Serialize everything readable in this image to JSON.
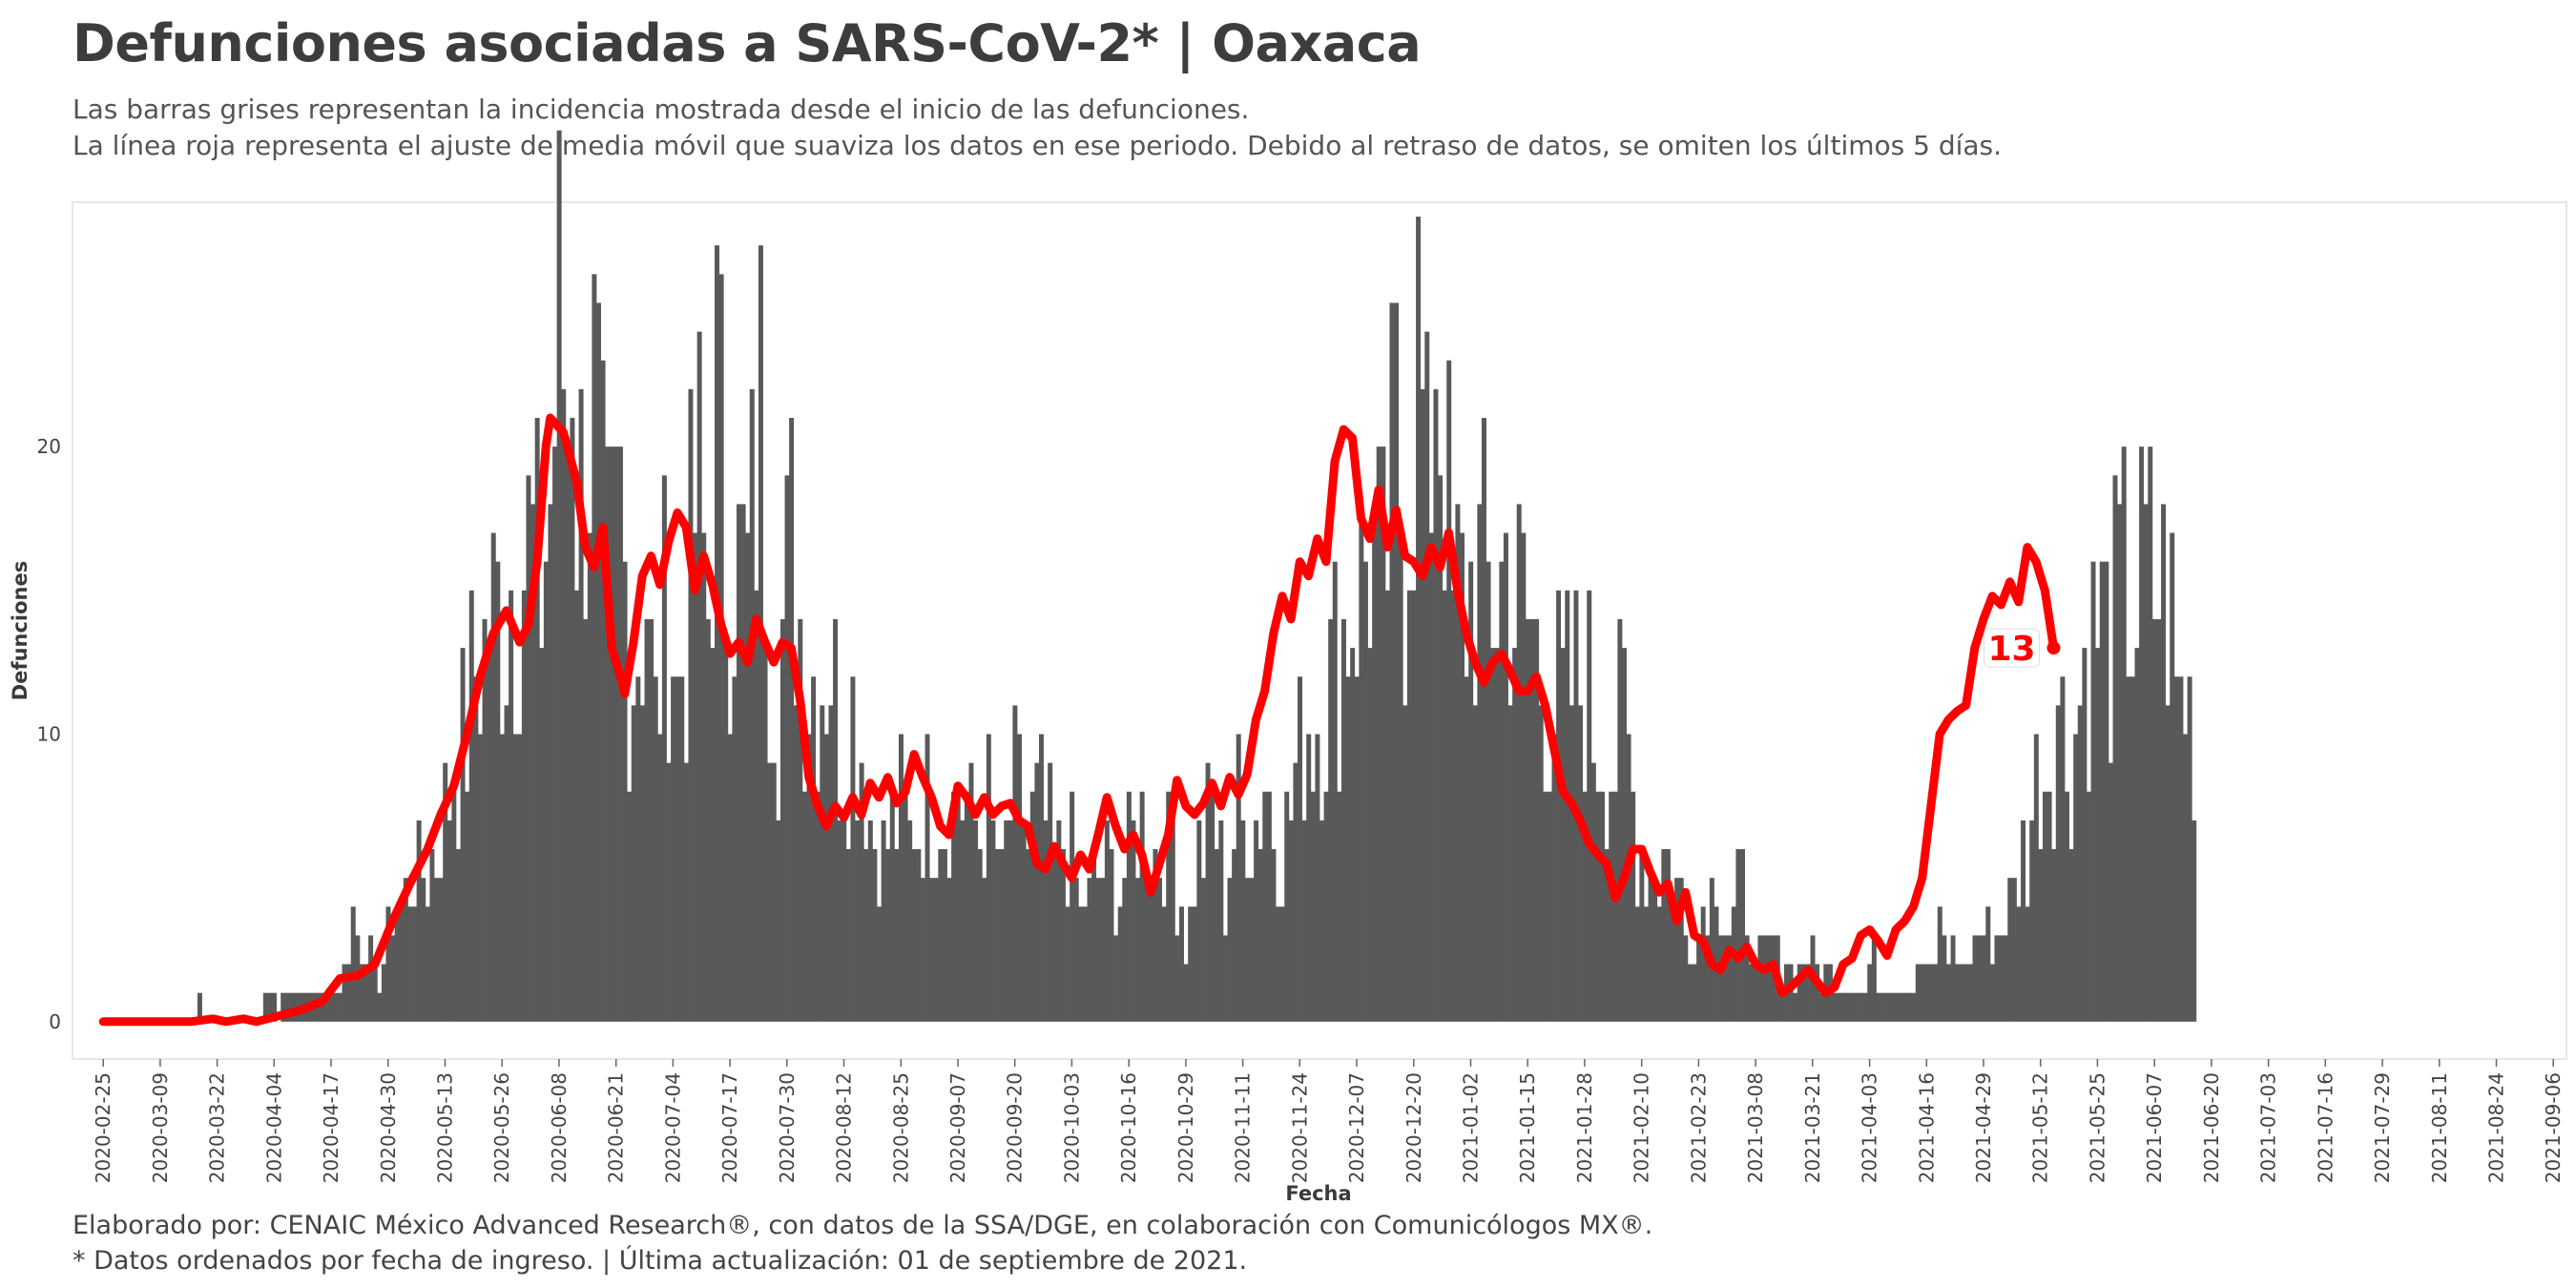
{
  "header": {
    "title": "Defunciones asociadas a SARS-CoV-2* | Oaxaca",
    "subtitle_line1": "Las barras grises representan la incidencia mostrada desde el inicio de las defunciones.",
    "subtitle_line2": "La línea roja representa el ajuste de media móvil que suaviza los datos en ese periodo. Debido al retraso de datos, se omiten los últimos 5 días."
  },
  "footer": {
    "line1": "Elaborado por: CENAIC México Advanced Research®, con datos de la SSA/DGE, en colaboración con Comunicólogos MX®.",
    "line2": "* Datos ordenados por fecha de ingreso. | Última actualización: 01 de septiembre de 2021."
  },
  "colors": {
    "bars": "#595959",
    "line": "#ff0000",
    "panel_border": "#e6e6e6"
  },
  "chart_data": {
    "type": "bar",
    "xlabel": "Fecha",
    "ylabel": "Defunciones",
    "start_date": "2020-02-25",
    "x_ticks": [
      "2020-02-25",
      "2020-03-09",
      "2020-03-22",
      "2020-04-04",
      "2020-04-17",
      "2020-04-30",
      "2020-05-13",
      "2020-05-26",
      "2020-06-08",
      "2020-06-21",
      "2020-07-04",
      "2020-07-17",
      "2020-07-30",
      "2020-08-12",
      "2020-08-25",
      "2020-09-07",
      "2020-09-20",
      "2020-10-03",
      "2020-10-16",
      "2020-10-29",
      "2020-11-11",
      "2020-11-24",
      "2020-12-07",
      "2020-12-20",
      "2021-01-02",
      "2021-01-15",
      "2021-01-28",
      "2021-02-10",
      "2021-02-23",
      "2021-03-08",
      "2021-03-21",
      "2021-04-03",
      "2021-04-16",
      "2021-04-29",
      "2021-05-12",
      "2021-05-25",
      "2021-06-07",
      "2021-06-20",
      "2021-07-03",
      "2021-07-16",
      "2021-07-29",
      "2021-08-11",
      "2021-08-24",
      "2021-09-06"
    ],
    "xlim": [
      "2020-02-18",
      "2021-09-09"
    ],
    "y_ticks": [
      0,
      10,
      20
    ],
    "ylim": [
      -1.3,
      28.5
    ],
    "grid": false,
    "end_label": "13",
    "anchors_bars": [
      [
        0,
        0
      ],
      [
        20,
        0
      ],
      [
        21,
        0
      ],
      [
        22,
        1
      ],
      [
        23,
        0
      ],
      [
        35,
        0
      ],
      [
        38,
        1
      ],
      [
        40,
        0
      ],
      [
        42,
        1
      ],
      [
        45,
        1
      ],
      [
        48,
        1
      ],
      [
        52,
        1
      ],
      [
        55,
        2
      ],
      [
        57,
        4
      ],
      [
        60,
        3
      ],
      [
        63,
        1
      ],
      [
        66,
        4
      ],
      [
        70,
        5
      ],
      [
        75,
        6
      ],
      [
        78,
        8
      ],
      [
        81,
        10
      ],
      [
        85,
        13
      ],
      [
        88,
        15
      ],
      [
        92,
        16
      ],
      [
        96,
        18
      ],
      [
        100,
        16
      ],
      [
        102,
        20
      ],
      [
        104,
        26
      ],
      [
        106,
        23
      ],
      [
        107,
        28
      ],
      [
        108,
        21
      ],
      [
        109,
        20
      ],
      [
        112,
        23
      ],
      [
        115,
        16
      ],
      [
        118,
        19
      ],
      [
        120,
        14
      ],
      [
        124,
        16
      ],
      [
        126,
        11
      ],
      [
        129,
        17
      ],
      [
        131,
        12
      ],
      [
        134,
        17
      ],
      [
        136,
        20
      ],
      [
        138,
        15
      ],
      [
        140,
        24
      ],
      [
        142,
        18
      ],
      [
        145,
        17
      ],
      [
        147,
        16
      ],
      [
        150,
        23
      ],
      [
        152,
        16
      ],
      [
        154,
        13
      ],
      [
        157,
        18
      ],
      [
        160,
        14
      ],
      [
        163,
        13
      ],
      [
        166,
        14
      ],
      [
        169,
        10
      ],
      [
        172,
        12
      ],
      [
        175,
        8
      ],
      [
        178,
        6
      ],
      [
        181,
        8
      ],
      [
        184,
        7
      ],
      [
        187,
        8
      ],
      [
        190,
        9
      ],
      [
        193,
        8
      ],
      [
        196,
        9
      ],
      [
        199,
        7
      ],
      [
        202,
        8
      ],
      [
        205,
        5
      ],
      [
        208,
        9
      ],
      [
        211,
        7
      ],
      [
        214,
        8
      ],
      [
        217,
        6
      ],
      [
        220,
        7
      ],
      [
        223,
        4
      ],
      [
        226,
        5
      ],
      [
        229,
        6
      ],
      [
        232,
        5
      ],
      [
        235,
        7
      ],
      [
        238,
        8
      ],
      [
        241,
        6
      ],
      [
        244,
        7
      ],
      [
        247,
        3
      ],
      [
        250,
        6
      ],
      [
        253,
        8
      ],
      [
        256,
        5
      ],
      [
        259,
        8
      ],
      [
        262,
        7
      ],
      [
        265,
        9
      ],
      [
        268,
        7
      ],
      [
        271,
        8
      ],
      [
        274,
        11
      ],
      [
        277,
        12
      ],
      [
        280,
        13
      ],
      [
        283,
        15
      ],
      [
        286,
        16
      ],
      [
        289,
        18
      ],
      [
        292,
        16
      ],
      [
        295,
        22
      ],
      [
        297,
        18
      ],
      [
        300,
        26
      ],
      [
        302,
        19
      ],
      [
        304,
        27
      ],
      [
        306,
        22
      ],
      [
        308,
        15
      ],
      [
        311,
        16
      ],
      [
        314,
        17
      ],
      [
        317,
        16
      ],
      [
        320,
        17
      ],
      [
        323,
        15
      ],
      [
        326,
        15
      ],
      [
        329,
        13
      ],
      [
        332,
        12
      ],
      [
        335,
        12
      ],
      [
        338,
        13
      ],
      [
        341,
        11
      ],
      [
        344,
        10
      ],
      [
        347,
        11
      ],
      [
        350,
        7
      ],
      [
        353,
        6
      ],
      [
        356,
        6
      ],
      [
        359,
        5
      ],
      [
        362,
        3
      ],
      [
        365,
        4
      ],
      [
        368,
        6
      ],
      [
        371,
        3
      ],
      [
        374,
        5
      ],
      [
        377,
        2
      ],
      [
        380,
        3
      ],
      [
        383,
        2
      ],
      [
        386,
        2
      ],
      [
        389,
        3
      ],
      [
        392,
        2
      ],
      [
        395,
        2
      ],
      [
        398,
        1
      ],
      [
        401,
        1
      ],
      [
        404,
        2
      ],
      [
        407,
        1
      ],
      [
        410,
        1
      ],
      [
        413,
        2
      ],
      [
        416,
        2
      ],
      [
        419,
        3
      ],
      [
        422,
        3
      ],
      [
        425,
        2
      ],
      [
        428,
        4
      ],
      [
        431,
        3
      ],
      [
        434,
        4
      ],
      [
        437,
        5
      ],
      [
        440,
        8
      ],
      [
        443,
        10
      ],
      [
        446,
        12
      ],
      [
        449,
        10
      ],
      [
        452,
        13
      ],
      [
        455,
        15
      ],
      [
        458,
        14
      ],
      [
        461,
        16
      ],
      [
        464,
        16
      ],
      [
        467,
        17
      ],
      [
        470,
        16
      ],
      [
        472,
        15
      ],
      [
        473,
        12
      ],
      [
        477,
        12
      ]
    ],
    "anchors_line": [
      [
        0,
        0
      ],
      [
        20,
        0
      ],
      [
        25,
        0.1
      ],
      [
        28,
        0
      ],
      [
        32,
        0.1
      ],
      [
        35,
        0
      ],
      [
        40,
        0.2
      ],
      [
        45,
        0.4
      ],
      [
        50,
        0.7
      ],
      [
        54,
        1.5
      ],
      [
        58,
        1.6
      ],
      [
        62,
        2.0
      ],
      [
        66,
        3.5
      ],
      [
        70,
        4.8
      ],
      [
        74,
        6.0
      ],
      [
        77,
        7.2
      ],
      [
        80,
        8.2
      ],
      [
        83,
        10.0
      ],
      [
        86,
        12.0
      ],
      [
        89,
        13.5
      ],
      [
        92,
        14.3
      ],
      [
        95,
        13.2
      ],
      [
        97,
        13.8
      ],
      [
        99,
        16.0
      ],
      [
        101,
        20.0
      ],
      [
        102,
        21.0
      ],
      [
        105,
        20.5
      ],
      [
        108,
        18.8
      ],
      [
        110,
        16.5
      ],
      [
        112,
        15.8
      ],
      [
        114,
        17.2
      ],
      [
        116,
        13.0
      ],
      [
        118,
        12.0
      ],
      [
        119,
        11.4
      ],
      [
        121,
        13.2
      ],
      [
        123,
        15.5
      ],
      [
        125,
        16.2
      ],
      [
        127,
        15.2
      ],
      [
        129,
        16.7
      ],
      [
        131,
        17.7
      ],
      [
        133,
        17.2
      ],
      [
        135,
        15.0
      ],
      [
        137,
        16.2
      ],
      [
        139,
        15.2
      ],
      [
        141,
        13.8
      ],
      [
        143,
        12.8
      ],
      [
        145,
        13.2
      ],
      [
        147,
        12.5
      ],
      [
        149,
        14.0
      ],
      [
        151,
        13.2
      ],
      [
        153,
        12.5
      ],
      [
        155,
        13.2
      ],
      [
        157,
        13.0
      ],
      [
        159,
        11.2
      ],
      [
        161,
        8.5
      ],
      [
        163,
        7.5
      ],
      [
        165,
        6.8
      ],
      [
        167,
        7.5
      ],
      [
        169,
        7.1
      ],
      [
        171,
        7.8
      ],
      [
        173,
        7.2
      ],
      [
        175,
        8.3
      ],
      [
        177,
        7.8
      ],
      [
        179,
        8.5
      ],
      [
        181,
        7.6
      ],
      [
        183,
        8.0
      ],
      [
        185,
        9.3
      ],
      [
        187,
        8.5
      ],
      [
        189,
        7.8
      ],
      [
        191,
        6.8
      ],
      [
        193,
        6.5
      ],
      [
        195,
        8.2
      ],
      [
        197,
        7.8
      ],
      [
        199,
        7.2
      ],
      [
        201,
        7.8
      ],
      [
        203,
        7.2
      ],
      [
        205,
        7.5
      ],
      [
        207,
        7.6
      ],
      [
        209,
        7.0
      ],
      [
        211,
        6.8
      ],
      [
        213,
        5.5
      ],
      [
        215,
        5.3
      ],
      [
        217,
        6.1
      ],
      [
        219,
        5.5
      ],
      [
        221,
        5.0
      ],
      [
        223,
        5.8
      ],
      [
        225,
        5.3
      ],
      [
        227,
        6.5
      ],
      [
        229,
        7.8
      ],
      [
        231,
        6.8
      ],
      [
        233,
        6.0
      ],
      [
        235,
        6.5
      ],
      [
        237,
        5.8
      ],
      [
        239,
        4.5
      ],
      [
        241,
        5.5
      ],
      [
        243,
        6.5
      ],
      [
        245,
        8.4
      ],
      [
        247,
        7.5
      ],
      [
        249,
        7.2
      ],
      [
        251,
        7.6
      ],
      [
        253,
        8.3
      ],
      [
        255,
        7.5
      ],
      [
        257,
        8.5
      ],
      [
        259,
        7.9
      ],
      [
        261,
        8.6
      ],
      [
        263,
        10.5
      ],
      [
        265,
        11.5
      ],
      [
        267,
        13.5
      ],
      [
        269,
        14.8
      ],
      [
        271,
        14.0
      ],
      [
        273,
        16.0
      ],
      [
        275,
        15.5
      ],
      [
        277,
        16.8
      ],
      [
        279,
        16.0
      ],
      [
        281,
        19.5
      ],
      [
        283,
        20.6
      ],
      [
        285,
        20.3
      ],
      [
        287,
        17.5
      ],
      [
        289,
        16.8
      ],
      [
        291,
        18.5
      ],
      [
        293,
        16.5
      ],
      [
        295,
        17.8
      ],
      [
        297,
        16.2
      ],
      [
        299,
        16.0
      ],
      [
        301,
        15.5
      ],
      [
        303,
        16.5
      ],
      [
        305,
        15.8
      ],
      [
        307,
        17.0
      ],
      [
        309,
        15.0
      ],
      [
        311,
        13.5
      ],
      [
        313,
        12.5
      ],
      [
        315,
        11.8
      ],
      [
        317,
        12.5
      ],
      [
        319,
        12.8
      ],
      [
        321,
        12.2
      ],
      [
        323,
        11.5
      ],
      [
        325,
        11.5
      ],
      [
        327,
        12.0
      ],
      [
        329,
        11.0
      ],
      [
        331,
        9.5
      ],
      [
        333,
        8.0
      ],
      [
        335,
        7.6
      ],
      [
        337,
        7.0
      ],
      [
        339,
        6.2
      ],
      [
        341,
        5.8
      ],
      [
        343,
        5.5
      ],
      [
        345,
        4.3
      ],
      [
        347,
        5.0
      ],
      [
        349,
        6.0
      ],
      [
        351,
        6.0
      ],
      [
        353,
        5.2
      ],
      [
        355,
        4.5
      ],
      [
        357,
        4.8
      ],
      [
        359,
        3.5
      ],
      [
        361,
        4.5
      ],
      [
        363,
        3.0
      ],
      [
        365,
        2.8
      ],
      [
        367,
        2.0
      ],
      [
        369,
        1.8
      ],
      [
        371,
        2.5
      ],
      [
        373,
        2.2
      ],
      [
        375,
        2.6
      ],
      [
        377,
        2.0
      ],
      [
        379,
        1.8
      ],
      [
        381,
        2.0
      ],
      [
        383,
        1.0
      ],
      [
        385,
        1.2
      ],
      [
        387,
        1.5
      ],
      [
        389,
        1.8
      ],
      [
        391,
        1.4
      ],
      [
        393,
        1.0
      ],
      [
        395,
        1.2
      ],
      [
        397,
        2.0
      ],
      [
        399,
        2.2
      ],
      [
        401,
        3.0
      ],
      [
        403,
        3.2
      ],
      [
        405,
        2.8
      ],
      [
        407,
        2.3
      ],
      [
        409,
        3.2
      ],
      [
        411,
        3.5
      ],
      [
        413,
        4.0
      ],
      [
        415,
        5.0
      ],
      [
        417,
        7.5
      ],
      [
        419,
        10.0
      ],
      [
        421,
        10.5
      ],
      [
        423,
        10.8
      ],
      [
        425,
        11.0
      ],
      [
        427,
        13.0
      ],
      [
        429,
        14.0
      ],
      [
        431,
        14.8
      ],
      [
        433,
        14.5
      ],
      [
        435,
        15.3
      ],
      [
        437,
        14.6
      ],
      [
        439,
        16.5
      ],
      [
        441,
        16.0
      ],
      [
        443,
        15.0
      ],
      [
        445,
        13.0
      ]
    ]
  }
}
